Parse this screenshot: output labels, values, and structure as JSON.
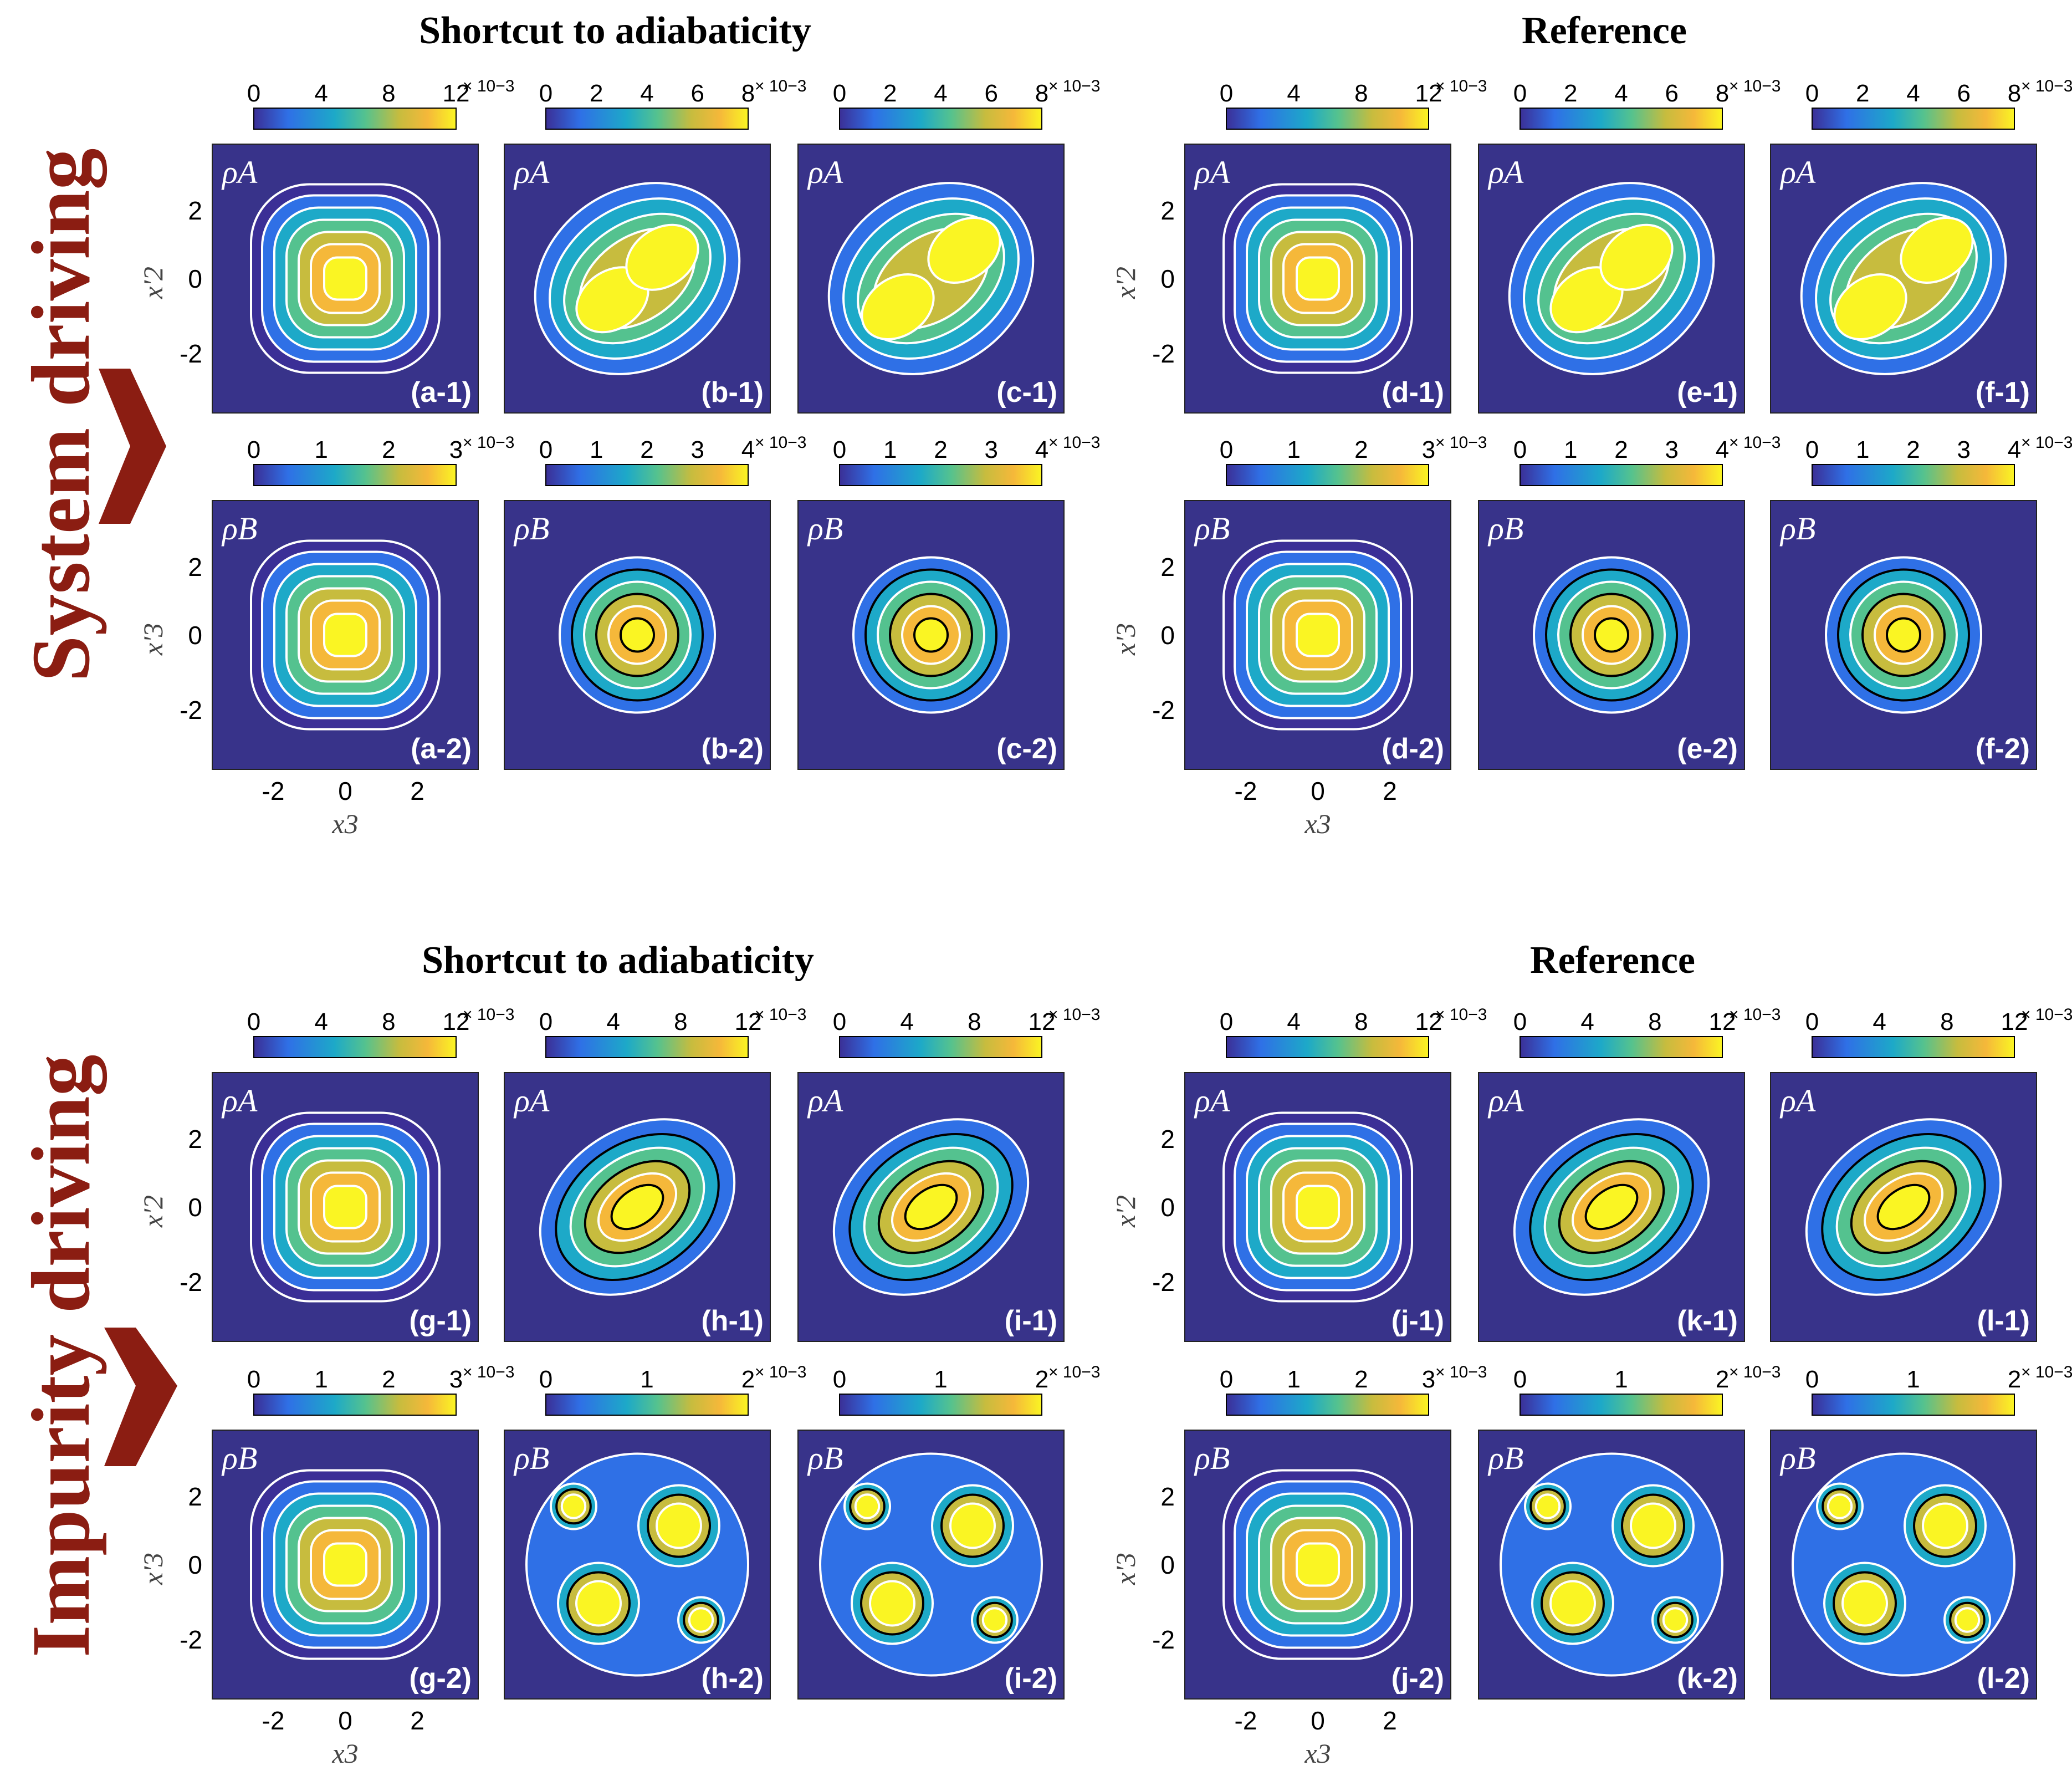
{
  "colors": {
    "background": "#38338a",
    "arrow": "#8b1d12",
    "colormap": [
      "#3b2f96",
      "#2f70e6",
      "#1da9c8",
      "#54c28f",
      "#c7bc3e",
      "#f5b83a",
      "#faf523"
    ]
  },
  "sections": [
    {
      "title": "Shortcut to adiabaticity"
    },
    {
      "title": "Reference"
    },
    {
      "title": "Shortcut to adiabaticity"
    },
    {
      "title": "Reference"
    }
  ],
  "side_labels": [
    "System driving",
    "Impurity driving"
  ],
  "axes": {
    "x_label": "x3",
    "y_label_A": "x'2",
    "y_label_B": "x'3",
    "x_ticks": [
      "-2",
      "0",
      "2"
    ],
    "y_ticks": [
      "2",
      "0",
      "-2"
    ]
  },
  "exponent": "× 10−3",
  "panels": [
    {
      "label": "(a-1)",
      "rho": "ρA",
      "cbar": [
        "0",
        "4",
        "8",
        "12"
      ],
      "shape": "round"
    },
    {
      "label": "(b-1)",
      "rho": "ρA",
      "cbar": [
        "0",
        "2",
        "4",
        "6",
        "8"
      ],
      "shape": "diag2"
    },
    {
      "label": "(c-1)",
      "rho": "ρA",
      "cbar": [
        "0",
        "2",
        "4",
        "6",
        "8"
      ],
      "shape": "diag2sep"
    },
    {
      "label": "(d-1)",
      "rho": "ρA",
      "cbar": [
        "0",
        "4",
        "8",
        "12"
      ],
      "shape": "round"
    },
    {
      "label": "(e-1)",
      "rho": "ρA",
      "cbar": [
        "0",
        "2",
        "4",
        "6",
        "8"
      ],
      "shape": "diag2"
    },
    {
      "label": "(f-1)",
      "rho": "ρA",
      "cbar": [
        "0",
        "2",
        "4",
        "6",
        "8"
      ],
      "shape": "diag2sep"
    },
    {
      "label": "(a-2)",
      "rho": "ρB",
      "cbar": [
        "0",
        "1",
        "2",
        "3"
      ],
      "shape": "round"
    },
    {
      "label": "(b-2)",
      "rho": "ρB",
      "cbar": [
        "0",
        "1",
        "2",
        "3",
        "4"
      ],
      "shape": "small"
    },
    {
      "label": "(c-2)",
      "rho": "ρB",
      "cbar": [
        "0",
        "1",
        "2",
        "3",
        "4"
      ],
      "shape": "small"
    },
    {
      "label": "(d-2)",
      "rho": "ρB",
      "cbar": [
        "0",
        "1",
        "2",
        "3"
      ],
      "shape": "round"
    },
    {
      "label": "(e-2)",
      "rho": "ρB",
      "cbar": [
        "0",
        "1",
        "2",
        "3",
        "4"
      ],
      "shape": "small"
    },
    {
      "label": "(f-2)",
      "rho": "ρB",
      "cbar": [
        "0",
        "1",
        "2",
        "3",
        "4"
      ],
      "shape": "small"
    },
    {
      "label": "(g-1)",
      "rho": "ρA",
      "cbar": [
        "0",
        "4",
        "8",
        "12"
      ],
      "shape": "round"
    },
    {
      "label": "(h-1)",
      "rho": "ρA",
      "cbar": [
        "0",
        "4",
        "8",
        "12"
      ],
      "shape": "ellipse"
    },
    {
      "label": "(i-1)",
      "rho": "ρA",
      "cbar": [
        "0",
        "4",
        "8",
        "12"
      ],
      "shape": "ellipse"
    },
    {
      "label": "(j-1)",
      "rho": "ρA",
      "cbar": [
        "0",
        "4",
        "8",
        "12"
      ],
      "shape": "round"
    },
    {
      "label": "(k-1)",
      "rho": "ρA",
      "cbar": [
        "0",
        "4",
        "8",
        "12"
      ],
      "shape": "ellipse"
    },
    {
      "label": "(l-1)",
      "rho": "ρA",
      "cbar": [
        "0",
        "4",
        "8",
        "12"
      ],
      "shape": "ellipse"
    },
    {
      "label": "(g-2)",
      "rho": "ρB",
      "cbar": [
        "0",
        "1",
        "2",
        "3"
      ],
      "shape": "round"
    },
    {
      "label": "(h-2)",
      "rho": "ρB",
      "cbar": [
        "0",
        "1",
        "2"
      ],
      "shape": "four"
    },
    {
      "label": "(i-2)",
      "rho": "ρB",
      "cbar": [
        "0",
        "1",
        "2"
      ],
      "shape": "four"
    },
    {
      "label": "(j-2)",
      "rho": "ρB",
      "cbar": [
        "0",
        "1",
        "2",
        "3"
      ],
      "shape": "round"
    },
    {
      "label": "(k-2)",
      "rho": "ρB",
      "cbar": [
        "0",
        "1",
        "2"
      ],
      "shape": "four"
    },
    {
      "label": "(l-2)",
      "rho": "ρB",
      "cbar": [
        "0",
        "1",
        "2"
      ],
      "shape": "four"
    }
  ]
}
